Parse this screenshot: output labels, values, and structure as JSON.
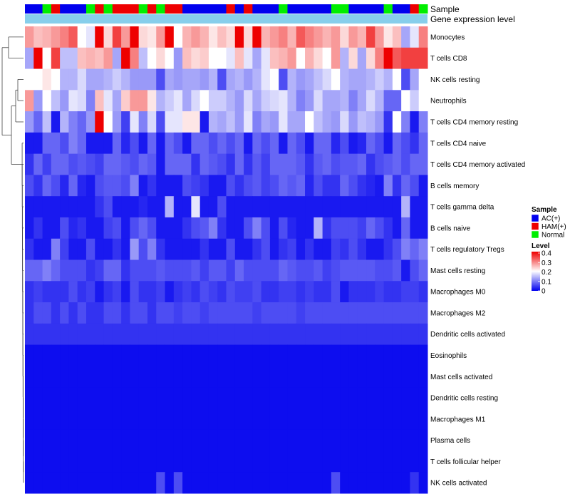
{
  "chart_data": {
    "type": "heatmap",
    "annotation_labels": [
      "Sample",
      "Gene expression level"
    ],
    "rows": [
      "Monocytes",
      "T cells CD8",
      "NK cells resting",
      "Neutrophils",
      "T cells CD4 memory resting",
      "T cells CD4 naive",
      "T cells CD4 memory activated",
      "B cells memory",
      "T cells gamma delta",
      "B cells naive",
      "T cells regulatory  Tregs",
      "Mast cells resting",
      "Macrophages M0",
      "Macrophages M2",
      "Dendritic cells activated",
      "Eosinophils",
      "Mast cells activated",
      "Dendritic cells resting",
      "Macrophages M1",
      "Plasma cells",
      "T cells follicular helper",
      "NK cells activated"
    ],
    "sample_groups": [
      "AC(+)",
      "AC(+)",
      "Normal",
      "HAM(+)",
      "AC(+)",
      "AC(+)",
      "AC(+)",
      "Normal",
      "HAM(+)",
      "Normal",
      "HAM(+)",
      "HAM(+)",
      "HAM(+)",
      "Normal",
      "HAM(+)",
      "Normal",
      "HAM(+)",
      "HAM(+)",
      "AC(+)",
      "AC(+)",
      "AC(+)",
      "AC(+)",
      "AC(+)",
      "HAM(+)",
      "AC(+)",
      "HAM(+)",
      "AC(+)",
      "AC(+)",
      "AC(+)",
      "Normal",
      "AC(+)",
      "AC(+)",
      "AC(+)",
      "AC(+)",
      "AC(+)",
      "Normal",
      "Normal",
      "AC(+)",
      "AC(+)",
      "AC(+)",
      "AC(+)",
      "Normal",
      "AC(+)",
      "AC(+)",
      "HAM(+)",
      "Normal"
    ],
    "values": [
      [
        0.28,
        0.25,
        0.26,
        0.28,
        0.3,
        0.33,
        0.2,
        0.18,
        0.4,
        0.23,
        0.35,
        0.28,
        0.4,
        0.23,
        0.22,
        0.28,
        0.4,
        0.2,
        0.26,
        0.28,
        0.26,
        0.22,
        0.25,
        0.23,
        0.4,
        0.23,
        0.42,
        0.26,
        0.28,
        0.3,
        0.26,
        0.33,
        0.3,
        0.28,
        0.26,
        0.28,
        0.23,
        0.28,
        0.26,
        0.35,
        0.28,
        0.22,
        0.25,
        0.13,
        0.18,
        0.3
      ],
      [
        0.13,
        0.4,
        0.2,
        0.35,
        0.15,
        0.15,
        0.25,
        0.26,
        0.25,
        0.28,
        0.13,
        0.42,
        0.3,
        0.15,
        0.2,
        0.23,
        0.2,
        0.12,
        0.25,
        0.23,
        0.24,
        0.2,
        0.2,
        0.18,
        0.25,
        0.18,
        0.13,
        0.18,
        0.25,
        0.26,
        0.28,
        0.2,
        0.26,
        0.23,
        0.2,
        0.28,
        0.14,
        0.23,
        0.13,
        0.23,
        0.3,
        0.4,
        0.33,
        0.35,
        0.35,
        0.35
      ],
      [
        0.2,
        0.2,
        0.22,
        0.2,
        0.14,
        0.14,
        0.17,
        0.13,
        0.13,
        0.14,
        0.16,
        0.14,
        0.12,
        0.12,
        0.12,
        0.06,
        0.13,
        0.12,
        0.13,
        0.13,
        0.12,
        0.14,
        0.06,
        0.13,
        0.14,
        0.12,
        0.14,
        0.18,
        0.2,
        0.06,
        0.14,
        0.12,
        0.13,
        0.15,
        0.17,
        0.2,
        0.14,
        0.13,
        0.13,
        0.14,
        0.16,
        0.14,
        0.2,
        0.06,
        0.13,
        0.2
      ],
      [
        0.28,
        0.12,
        0.2,
        0.15,
        0.12,
        0.18,
        0.17,
        0.1,
        0.25,
        0.18,
        0.13,
        0.24,
        0.28,
        0.28,
        0.22,
        0.14,
        0.16,
        0.18,
        0.13,
        0.17,
        0.2,
        0.16,
        0.16,
        0.14,
        0.12,
        0.17,
        0.13,
        0.16,
        0.17,
        0.18,
        0.14,
        0.1,
        0.12,
        0.17,
        0.13,
        0.13,
        0.14,
        0.1,
        0.13,
        0.17,
        0.14,
        0.08,
        0.08,
        0.2,
        0.16,
        0.2
      ],
      [
        0.12,
        0.08,
        0.15,
        0.02,
        0.14,
        0.1,
        0.08,
        0.12,
        0.42,
        0.2,
        0.12,
        0.05,
        0.18,
        0.1,
        0.17,
        0.06,
        0.18,
        0.18,
        0.22,
        0.22,
        0.02,
        0.14,
        0.13,
        0.15,
        0.12,
        0.18,
        0.1,
        0.13,
        0.12,
        0.18,
        0.13,
        0.13,
        0.2,
        0.15,
        0.13,
        0.12,
        0.17,
        0.12,
        0.15,
        0.14,
        0.12,
        0.04,
        0.2,
        0.1,
        0.02,
        0.1
      ],
      [
        0.02,
        0.02,
        0.08,
        0.08,
        0.06,
        0.1,
        0.08,
        0.02,
        0.02,
        0.02,
        0.08,
        0.03,
        0.06,
        0.02,
        0.08,
        0.02,
        0.08,
        0.06,
        0.02,
        0.08,
        0.08,
        0.06,
        0.08,
        0.06,
        0.08,
        0.02,
        0.08,
        0.06,
        0.08,
        0.02,
        0.08,
        0.06,
        0.02,
        0.08,
        0.08,
        0.03,
        0.06,
        0.02,
        0.03,
        0.08,
        0.06,
        0.02,
        0.08,
        0.06,
        0.04,
        0.08
      ],
      [
        0.04,
        0.08,
        0.05,
        0.08,
        0.08,
        0.06,
        0.07,
        0.06,
        0.05,
        0.08,
        0.08,
        0.07,
        0.06,
        0.08,
        0.07,
        0.02,
        0.08,
        0.08,
        0.08,
        0.04,
        0.08,
        0.07,
        0.06,
        0.04,
        0.08,
        0.04,
        0.07,
        0.05,
        0.08,
        0.08,
        0.08,
        0.07,
        0.04,
        0.07,
        0.08,
        0.06,
        0.07,
        0.07,
        0.08,
        0.04,
        0.06,
        0.07,
        0.08,
        0.06,
        0.08,
        0.08
      ],
      [
        0.06,
        0.04,
        0.08,
        0.06,
        0.03,
        0.08,
        0.03,
        0.02,
        0.06,
        0.07,
        0.07,
        0.06,
        0.1,
        0.02,
        0.04,
        0.02,
        0.02,
        0.02,
        0.06,
        0.05,
        0.04,
        0.02,
        0.02,
        0.06,
        0.04,
        0.06,
        0.07,
        0.05,
        0.06,
        0.08,
        0.07,
        0.08,
        0.03,
        0.06,
        0.04,
        0.04,
        0.08,
        0.06,
        0.04,
        0.03,
        0.02,
        0.1,
        0.04,
        0.08,
        0.06,
        0.02
      ],
      [
        0.02,
        0.02,
        0.02,
        0.02,
        0.02,
        0.02,
        0.02,
        0.02,
        0.04,
        0.06,
        0.02,
        0.02,
        0.02,
        0.03,
        0.02,
        0.02,
        0.14,
        0.02,
        0.02,
        0.18,
        0.02,
        0.02,
        0.06,
        0.02,
        0.02,
        0.02,
        0.02,
        0.02,
        0.02,
        0.02,
        0.02,
        0.02,
        0.02,
        0.02,
        0.02,
        0.02,
        0.02,
        0.02,
        0.02,
        0.02,
        0.02,
        0.02,
        0.02,
        0.14,
        0.02,
        0.02
      ],
      [
        0.02,
        0.04,
        0.02,
        0.02,
        0.06,
        0.03,
        0.04,
        0.02,
        0.02,
        0.05,
        0.06,
        0.02,
        0.06,
        0.08,
        0.06,
        0.02,
        0.02,
        0.02,
        0.04,
        0.06,
        0.07,
        0.1,
        0.04,
        0.02,
        0.02,
        0.06,
        0.1,
        0.06,
        0.02,
        0.06,
        0.03,
        0.02,
        0.02,
        0.14,
        0.04,
        0.06,
        0.06,
        0.06,
        0.05,
        0.08,
        0.06,
        0.04,
        0.02,
        0.08,
        0.02,
        0.02
      ],
      [
        0.04,
        0.02,
        0.02,
        0.1,
        0.05,
        0.02,
        0.02,
        0.06,
        0.02,
        0.02,
        0.04,
        0.02,
        0.12,
        0.06,
        0.1,
        0.04,
        0.02,
        0.02,
        0.02,
        0.02,
        0.04,
        0.02,
        0.02,
        0.06,
        0.02,
        0.02,
        0.04,
        0.06,
        0.02,
        0.04,
        0.05,
        0.02,
        0.04,
        0.02,
        0.02,
        0.05,
        0.04,
        0.06,
        0.04,
        0.02,
        0.02,
        0.04,
        0.06,
        0.1,
        0.08,
        0.1
      ],
      [
        0.08,
        0.08,
        0.1,
        0.08,
        0.06,
        0.06,
        0.06,
        0.04,
        0.05,
        0.08,
        0.08,
        0.04,
        0.06,
        0.06,
        0.06,
        0.07,
        0.06,
        0.06,
        0.06,
        0.07,
        0.05,
        0.07,
        0.07,
        0.05,
        0.08,
        0.06,
        0.06,
        0.06,
        0.06,
        0.08,
        0.07,
        0.06,
        0.06,
        0.07,
        0.05,
        0.06,
        0.07,
        0.07,
        0.07,
        0.07,
        0.06,
        0.06,
        0.07,
        0.02,
        0.06,
        0.08
      ],
      [
        0.04,
        0.05,
        0.04,
        0.04,
        0.04,
        0.06,
        0.04,
        0.05,
        0.02,
        0.04,
        0.05,
        0.02,
        0.06,
        0.04,
        0.04,
        0.05,
        0.02,
        0.04,
        0.05,
        0.04,
        0.06,
        0.05,
        0.04,
        0.06,
        0.05,
        0.05,
        0.06,
        0.04,
        0.04,
        0.05,
        0.05,
        0.04,
        0.05,
        0.04,
        0.04,
        0.06,
        0.02,
        0.04,
        0.04,
        0.04,
        0.05,
        0.04,
        0.04,
        0.05,
        0.05,
        0.04
      ],
      [
        0.04,
        0.06,
        0.06,
        0.04,
        0.06,
        0.04,
        0.06,
        0.04,
        0.04,
        0.06,
        0.06,
        0.04,
        0.06,
        0.06,
        0.04,
        0.06,
        0.06,
        0.05,
        0.06,
        0.06,
        0.05,
        0.06,
        0.06,
        0.06,
        0.06,
        0.06,
        0.05,
        0.06,
        0.06,
        0.06,
        0.06,
        0.05,
        0.06,
        0.06,
        0.06,
        0.06,
        0.06,
        0.06,
        0.06,
        0.06,
        0.06,
        0.06,
        0.06,
        0.06,
        0.06,
        0.06
      ],
      [
        0.04,
        0.04,
        0.04,
        0.04,
        0.04,
        0.04,
        0.04,
        0.04,
        0.04,
        0.04,
        0.04,
        0.04,
        0.04,
        0.04,
        0.04,
        0.04,
        0.04,
        0.04,
        0.04,
        0.04,
        0.04,
        0.04,
        0.04,
        0.04,
        0.04,
        0.04,
        0.04,
        0.04,
        0.04,
        0.04,
        0.04,
        0.04,
        0.04,
        0.04,
        0.04,
        0.04,
        0.04,
        0.04,
        0.04,
        0.04,
        0.04,
        0.04,
        0.04,
        0.04,
        0.04,
        0.04
      ],
      [
        0.01,
        0.01,
        0.01,
        0.01,
        0.01,
        0.01,
        0.01,
        0.01,
        0.01,
        0.01,
        0.01,
        0.01,
        0.01,
        0.01,
        0.01,
        0.01,
        0.01,
        0.01,
        0.01,
        0.01,
        0.01,
        0.01,
        0.01,
        0.01,
        0.01,
        0.01,
        0.01,
        0.01,
        0.01,
        0.01,
        0.01,
        0.01,
        0.01,
        0.01,
        0.01,
        0.01,
        0.01,
        0.01,
        0.01,
        0.01,
        0.01,
        0.01,
        0.01,
        0.01,
        0.01,
        0.01
      ],
      [
        0.01,
        0.01,
        0.01,
        0.01,
        0.01,
        0.01,
        0.01,
        0.01,
        0.01,
        0.01,
        0.01,
        0.01,
        0.01,
        0.01,
        0.01,
        0.01,
        0.01,
        0.01,
        0.01,
        0.01,
        0.01,
        0.01,
        0.01,
        0.01,
        0.01,
        0.01,
        0.01,
        0.01,
        0.01,
        0.01,
        0.01,
        0.01,
        0.01,
        0.01,
        0.01,
        0.01,
        0.01,
        0.01,
        0.01,
        0.01,
        0.01,
        0.01,
        0.01,
        0.01,
        0.01,
        0.01
      ],
      [
        0.01,
        0.01,
        0.01,
        0.01,
        0.01,
        0.01,
        0.01,
        0.01,
        0.01,
        0.01,
        0.01,
        0.01,
        0.01,
        0.01,
        0.01,
        0.01,
        0.01,
        0.01,
        0.01,
        0.01,
        0.01,
        0.01,
        0.01,
        0.01,
        0.01,
        0.01,
        0.01,
        0.01,
        0.01,
        0.01,
        0.01,
        0.01,
        0.01,
        0.01,
        0.01,
        0.01,
        0.01,
        0.01,
        0.01,
        0.01,
        0.01,
        0.01,
        0.01,
        0.01,
        0.01,
        0.01
      ],
      [
        0.01,
        0.01,
        0.01,
        0.01,
        0.01,
        0.01,
        0.01,
        0.01,
        0.01,
        0.01,
        0.01,
        0.01,
        0.01,
        0.01,
        0.01,
        0.01,
        0.01,
        0.01,
        0.01,
        0.01,
        0.01,
        0.01,
        0.01,
        0.01,
        0.01,
        0.01,
        0.01,
        0.01,
        0.01,
        0.01,
        0.01,
        0.01,
        0.01,
        0.01,
        0.01,
        0.01,
        0.01,
        0.01,
        0.01,
        0.01,
        0.01,
        0.01,
        0.01,
        0.01,
        0.01,
        0.01
      ],
      [
        0.01,
        0.01,
        0.01,
        0.01,
        0.01,
        0.01,
        0.01,
        0.01,
        0.01,
        0.01,
        0.01,
        0.01,
        0.01,
        0.01,
        0.01,
        0.01,
        0.01,
        0.01,
        0.01,
        0.01,
        0.01,
        0.01,
        0.01,
        0.01,
        0.01,
        0.01,
        0.01,
        0.01,
        0.01,
        0.01,
        0.01,
        0.01,
        0.01,
        0.01,
        0.01,
        0.01,
        0.01,
        0.01,
        0.01,
        0.01,
        0.01,
        0.01,
        0.01,
        0.01,
        0.01,
        0.01
      ],
      [
        0.01,
        0.01,
        0.01,
        0.01,
        0.01,
        0.01,
        0.01,
        0.01,
        0.01,
        0.01,
        0.01,
        0.01,
        0.01,
        0.01,
        0.01,
        0.01,
        0.01,
        0.01,
        0.01,
        0.01,
        0.01,
        0.01,
        0.01,
        0.01,
        0.01,
        0.01,
        0.01,
        0.01,
        0.01,
        0.01,
        0.01,
        0.01,
        0.01,
        0.01,
        0.01,
        0.01,
        0.01,
        0.01,
        0.01,
        0.01,
        0.01,
        0.01,
        0.01,
        0.01,
        0.01,
        0.01
      ],
      [
        0.01,
        0.01,
        0.01,
        0.01,
        0.01,
        0.01,
        0.01,
        0.01,
        0.01,
        0.01,
        0.01,
        0.01,
        0.01,
        0.01,
        0.01,
        0.06,
        0.01,
        0.06,
        0.01,
        0.01,
        0.01,
        0.01,
        0.01,
        0.01,
        0.01,
        0.01,
        0.01,
        0.01,
        0.01,
        0.01,
        0.01,
        0.01,
        0.01,
        0.01,
        0.01,
        0.06,
        0.01,
        0.01,
        0.01,
        0.01,
        0.01,
        0.01,
        0.01,
        0.01,
        0.04,
        0.01
      ]
    ],
    "legend_sample": {
      "title": "Sample",
      "entries": [
        {
          "label": "AC(+)",
          "color": "#0000ee"
        },
        {
          "label": "HAM(+)",
          "color": "#ee0000"
        },
        {
          "label": "Normal",
          "color": "#00ee00"
        }
      ]
    },
    "legend_level": {
      "title": "Level",
      "ticks": [
        "0.4",
        "0.3",
        "0.2",
        "0.1",
        "0"
      ],
      "range": [
        0,
        0.4
      ]
    },
    "gene_expression_color": "#87ceeb",
    "color_scale": [
      "#0000ee",
      "#ffffff",
      "#ee0000"
    ]
  }
}
